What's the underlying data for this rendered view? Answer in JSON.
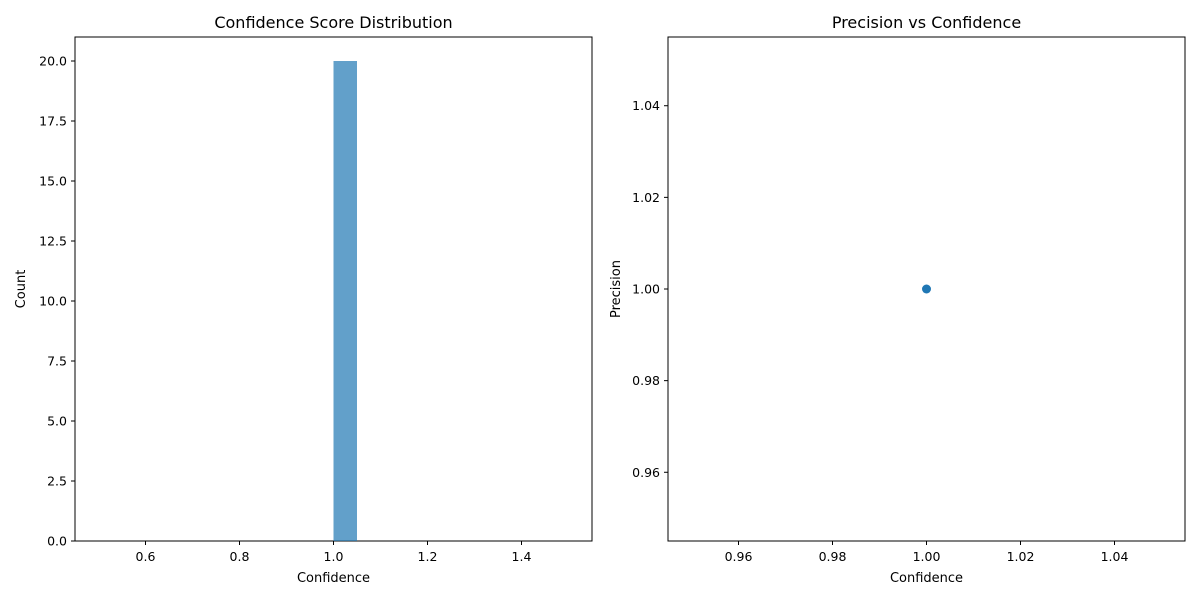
{
  "chart_data": [
    {
      "type": "bar",
      "title": "Confidence Score Distribution",
      "xlabel": "Confidence",
      "ylabel": "Count",
      "xlim": [
        0.45,
        1.55
      ],
      "ylim": [
        0,
        21
      ],
      "xticks": [
        0.6,
        0.8,
        1.0,
        1.2,
        1.4
      ],
      "xtick_labels": [
        "0.6",
        "0.8",
        "1.0",
        "1.2",
        "1.4"
      ],
      "yticks": [
        0,
        2.5,
        5,
        7.5,
        10,
        12.5,
        15,
        17.5,
        20
      ],
      "ytick_labels": [
        "0.0",
        "2.5",
        "5.0",
        "7.5",
        "10.0",
        "12.5",
        "15.0",
        "17.5",
        "20.0"
      ],
      "bins": [
        {
          "x0": 1.0,
          "x1": 1.05,
          "count": 20
        }
      ],
      "bar_color": "#1f77b4",
      "bar_opacity": 0.7,
      "grid": false
    },
    {
      "type": "scatter",
      "title": "Precision vs Confidence",
      "xlabel": "Confidence",
      "ylabel": "Precision",
      "xlim": [
        0.945,
        1.055
      ],
      "ylim": [
        0.945,
        1.055
      ],
      "xticks": [
        0.96,
        0.98,
        1.0,
        1.02,
        1.04
      ],
      "xtick_labels": [
        "0.96",
        "0.98",
        "1.00",
        "1.02",
        "1.04"
      ],
      "yticks": [
        0.96,
        0.98,
        1.0,
        1.02,
        1.04
      ],
      "ytick_labels": [
        "0.96",
        "0.98",
        "1.00",
        "1.02",
        "1.04"
      ],
      "points": [
        {
          "x": 1.0,
          "y": 1.0
        }
      ],
      "point_color": "#1f77b4",
      "grid": false
    }
  ]
}
